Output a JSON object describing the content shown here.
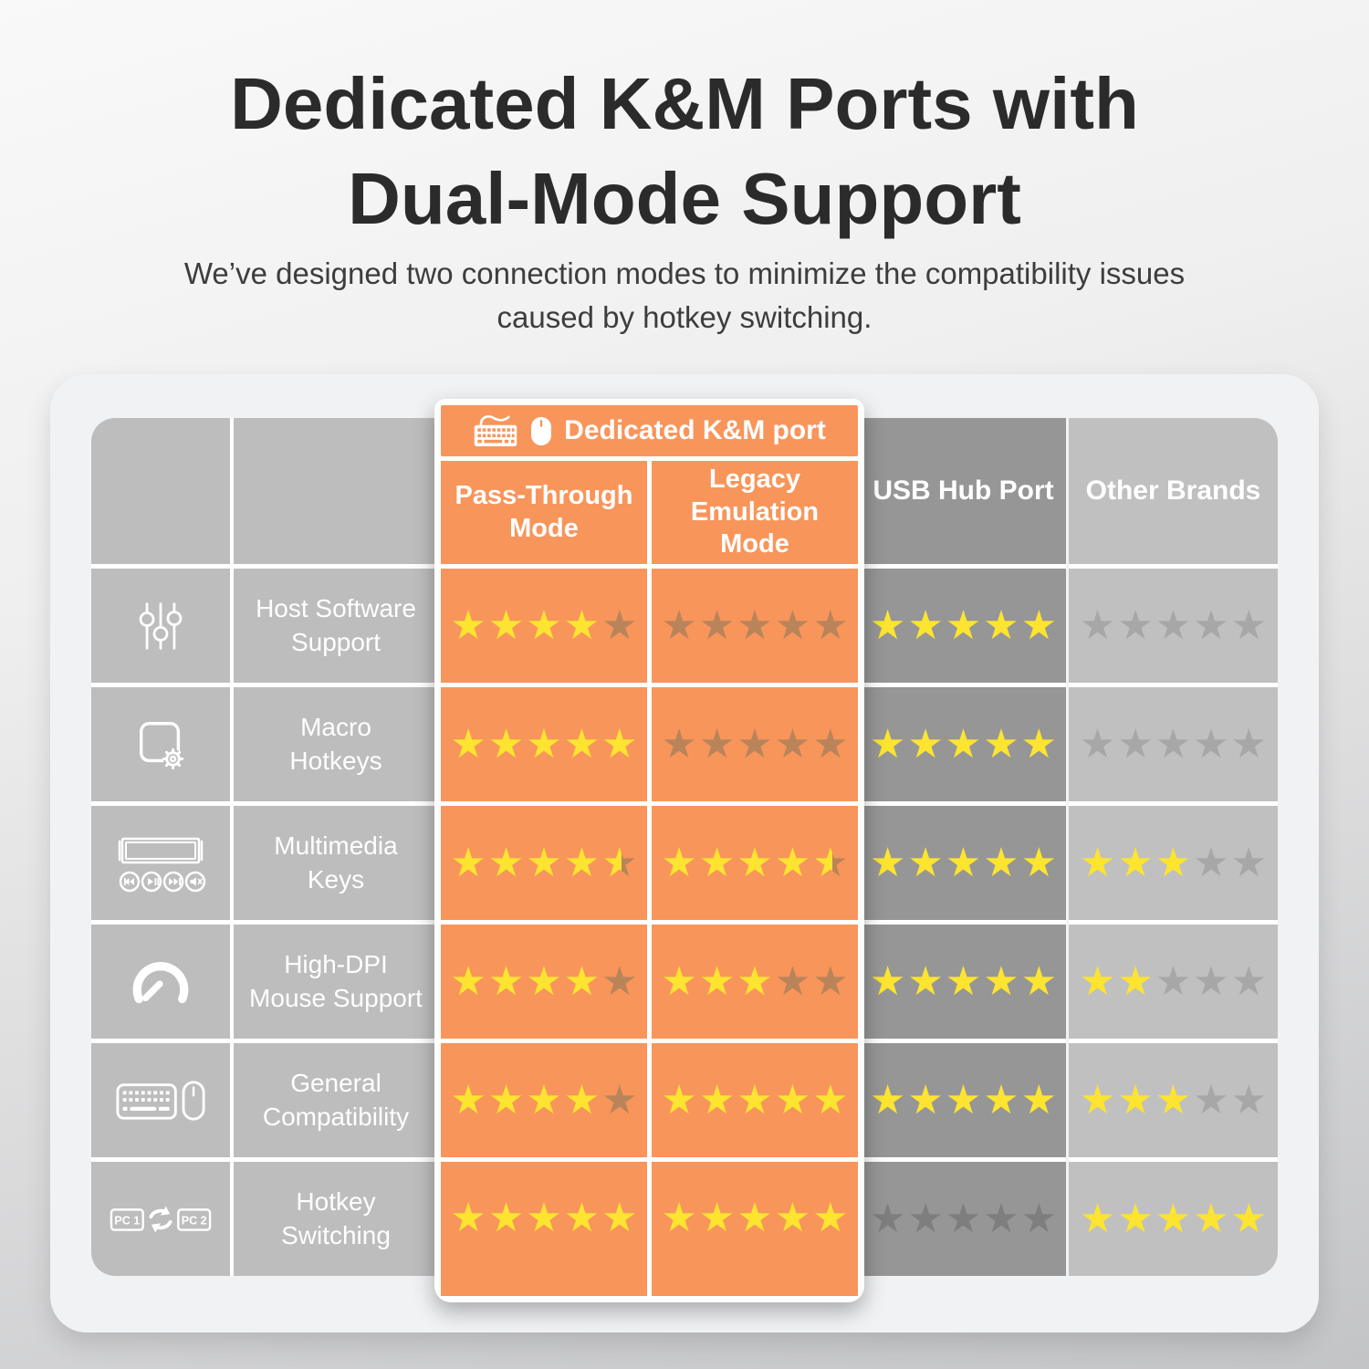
{
  "header": {
    "title_line1": "Dedicated K&M Ports with",
    "title_line2": "Dual-Mode Support",
    "subtitle_line1": "We’ve designed two connection modes to minimize the compatibility issues",
    "subtitle_line2": "caused by hotkey switching."
  },
  "table": {
    "km_group_label": "Dedicated K&M port",
    "km_group_icons": [
      "keyboard-icon",
      "mouse-icon"
    ],
    "columns": [
      {
        "key": "pass_through",
        "label": "Pass-Through\nMode",
        "group": "km"
      },
      {
        "key": "legacy",
        "label": "Legacy\nEmulation\nMode",
        "group": "km"
      },
      {
        "key": "usb_hub",
        "label": "USB Hub Port"
      },
      {
        "key": "other",
        "label": "Other Brands"
      }
    ],
    "max_stars": 5,
    "rows": [
      {
        "icon": "sliders-icon",
        "feature": "Host Software\nSupport",
        "ratings": {
          "pass_through": 4,
          "legacy": 0,
          "usb_hub": 5,
          "other": 0
        }
      },
      {
        "icon": "macro-gear-icon",
        "feature": "Macro\nHotkeys",
        "ratings": {
          "pass_through": 5,
          "legacy": 0,
          "usb_hub": 5,
          "other": 0
        }
      },
      {
        "icon": "multimedia-keys-icon",
        "feature": "Multimedia\nKeys",
        "ratings": {
          "pass_through": 4.5,
          "legacy": 4.5,
          "usb_hub": 5,
          "other": 3
        }
      },
      {
        "icon": "speedometer-icon",
        "feature": "High-DPI\nMouse Support",
        "ratings": {
          "pass_through": 4,
          "legacy": 3,
          "usb_hub": 5,
          "other": 2
        }
      },
      {
        "icon": "keyboard-mouse-icon",
        "feature": "General\nCompatibility",
        "ratings": {
          "pass_through": 4,
          "legacy": 5,
          "usb_hub": 5,
          "other": 3
        }
      },
      {
        "icon": "pc-switch-icon",
        "feature": "Hotkey\nSwitching",
        "ratings": {
          "pass_through": 5,
          "legacy": 5,
          "usb_hub": 0,
          "other": 5
        }
      }
    ],
    "icon_labels": {
      "pc1": "PC 1",
      "pc2": "PC 2"
    }
  },
  "colors": {
    "accent_orange": "#f8955b",
    "star_yellow": "#fce430",
    "star_dim_on_orange": "#b9845a",
    "star_dim_on_dark": "#7e7e7e",
    "star_dim_on_light": "#a7a7a7",
    "column_gray_left": "#bdbdbd",
    "column_gray_dark": "#969696",
    "column_gray_light": "#c0c0c0",
    "card_background": "#f1f2f4",
    "title_color": "#2b2b2b"
  },
  "chart_data": {
    "type": "table",
    "title": "Dedicated K&M Ports with Dual-Mode Support",
    "categories": [
      "Host Software Support",
      "Macro Hotkeys",
      "Multimedia Keys",
      "High-DPI Mouse Support",
      "General Compatibility",
      "Hotkey Switching"
    ],
    "series": [
      {
        "name": "Pass-Through Mode",
        "values": [
          4,
          5,
          4.5,
          4,
          4,
          5
        ]
      },
      {
        "name": "Legacy Emulation Mode",
        "values": [
          0,
          0,
          4.5,
          3,
          5,
          5
        ]
      },
      {
        "name": "USB Hub Port",
        "values": [
          5,
          5,
          5,
          5,
          5,
          0
        ]
      },
      {
        "name": "Other Brands",
        "values": [
          0,
          0,
          3,
          2,
          3,
          5
        ]
      }
    ],
    "value_range": [
      0,
      5
    ],
    "unit": "stars"
  }
}
